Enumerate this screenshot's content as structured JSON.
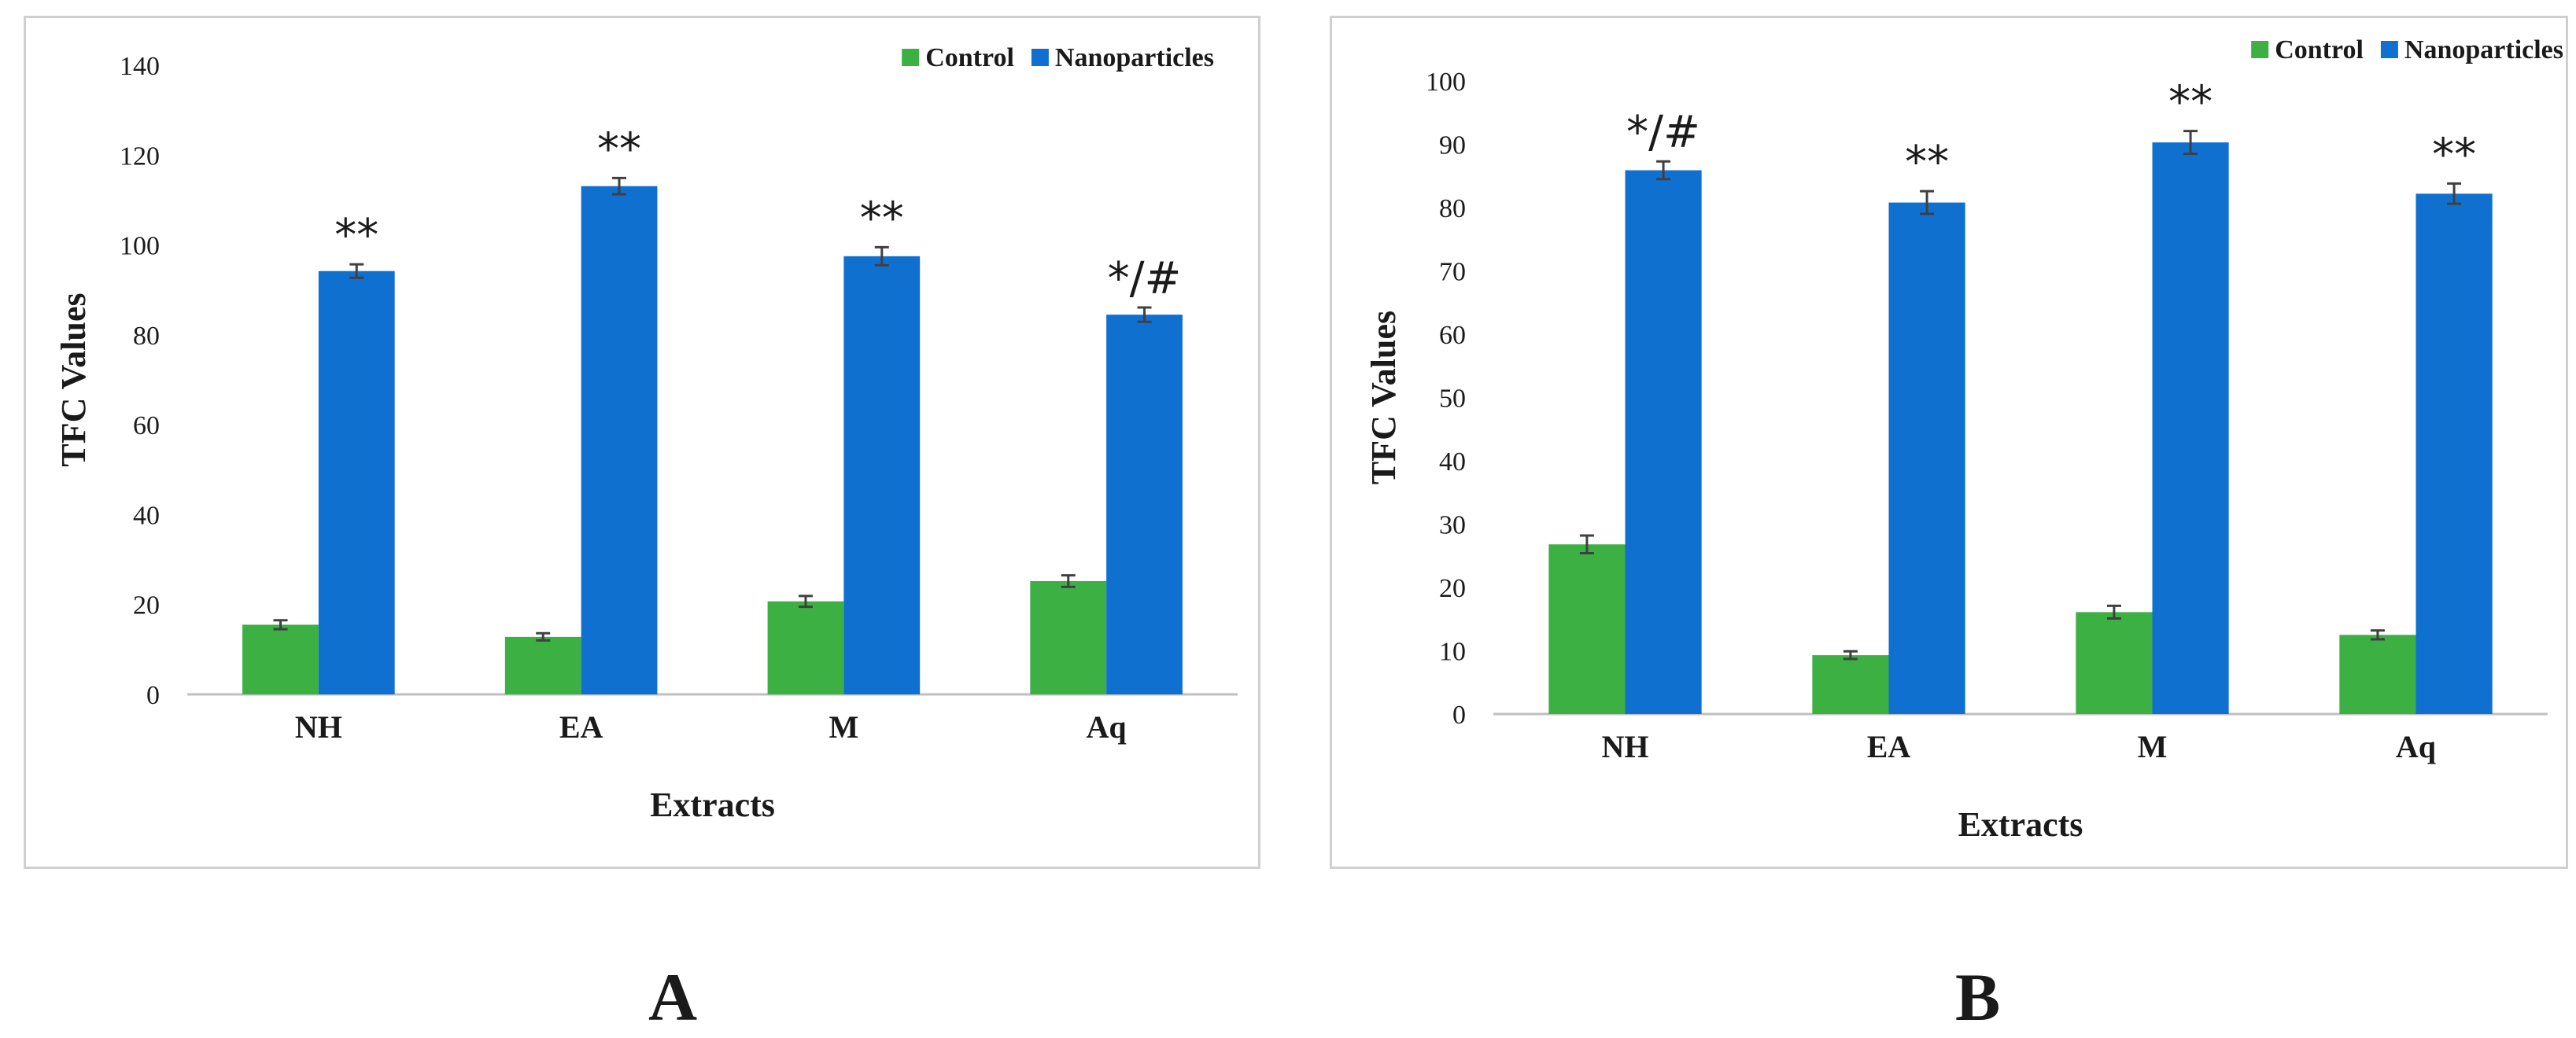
{
  "colors": {
    "control": "#3cb043",
    "nanoparticles": "#1070d0",
    "axis": "#bfbfbf",
    "errorbar": "#404040"
  },
  "chart_data": [
    {
      "type": "bar",
      "panel_label": "A",
      "categories": [
        "NH",
        "EA",
        "M",
        "Aq"
      ],
      "series": [
        {
          "name": "Control",
          "values": [
            15.5,
            12.8,
            20.7,
            25.2
          ],
          "errors": [
            1.0,
            0.8,
            1.2,
            1.3
          ]
        },
        {
          "name": "Nanoparticles",
          "values": [
            94.2,
            113.1,
            97.5,
            84.5
          ],
          "errors": [
            1.5,
            1.8,
            2.0,
            1.6
          ]
        }
      ],
      "annotations": [
        "**",
        "**",
        "**",
        "*/#"
      ],
      "xlabel": "Extracts",
      "ylabel": "TFC Values",
      "ylim": [
        0,
        140
      ],
      "ytick_step": 20,
      "legend_position": "top-right"
    },
    {
      "type": "bar",
      "panel_label": "B",
      "categories": [
        "NH",
        "EA",
        "M",
        "Aq"
      ],
      "series": [
        {
          "name": "Control",
          "values": [
            26.8,
            9.3,
            16.1,
            12.5
          ],
          "errors": [
            1.4,
            0.6,
            1.0,
            0.7
          ]
        },
        {
          "name": "Nanoparticles",
          "values": [
            85.9,
            80.8,
            90.3,
            82.2
          ],
          "errors": [
            1.4,
            1.8,
            1.8,
            1.6
          ]
        }
      ],
      "annotations": [
        "*/#",
        "**",
        "**",
        "**"
      ],
      "xlabel": "Extracts",
      "ylabel": "TFC Values",
      "ylim": [
        0,
        100
      ],
      "ytick_step": 10,
      "legend_position": "top-right"
    }
  ]
}
